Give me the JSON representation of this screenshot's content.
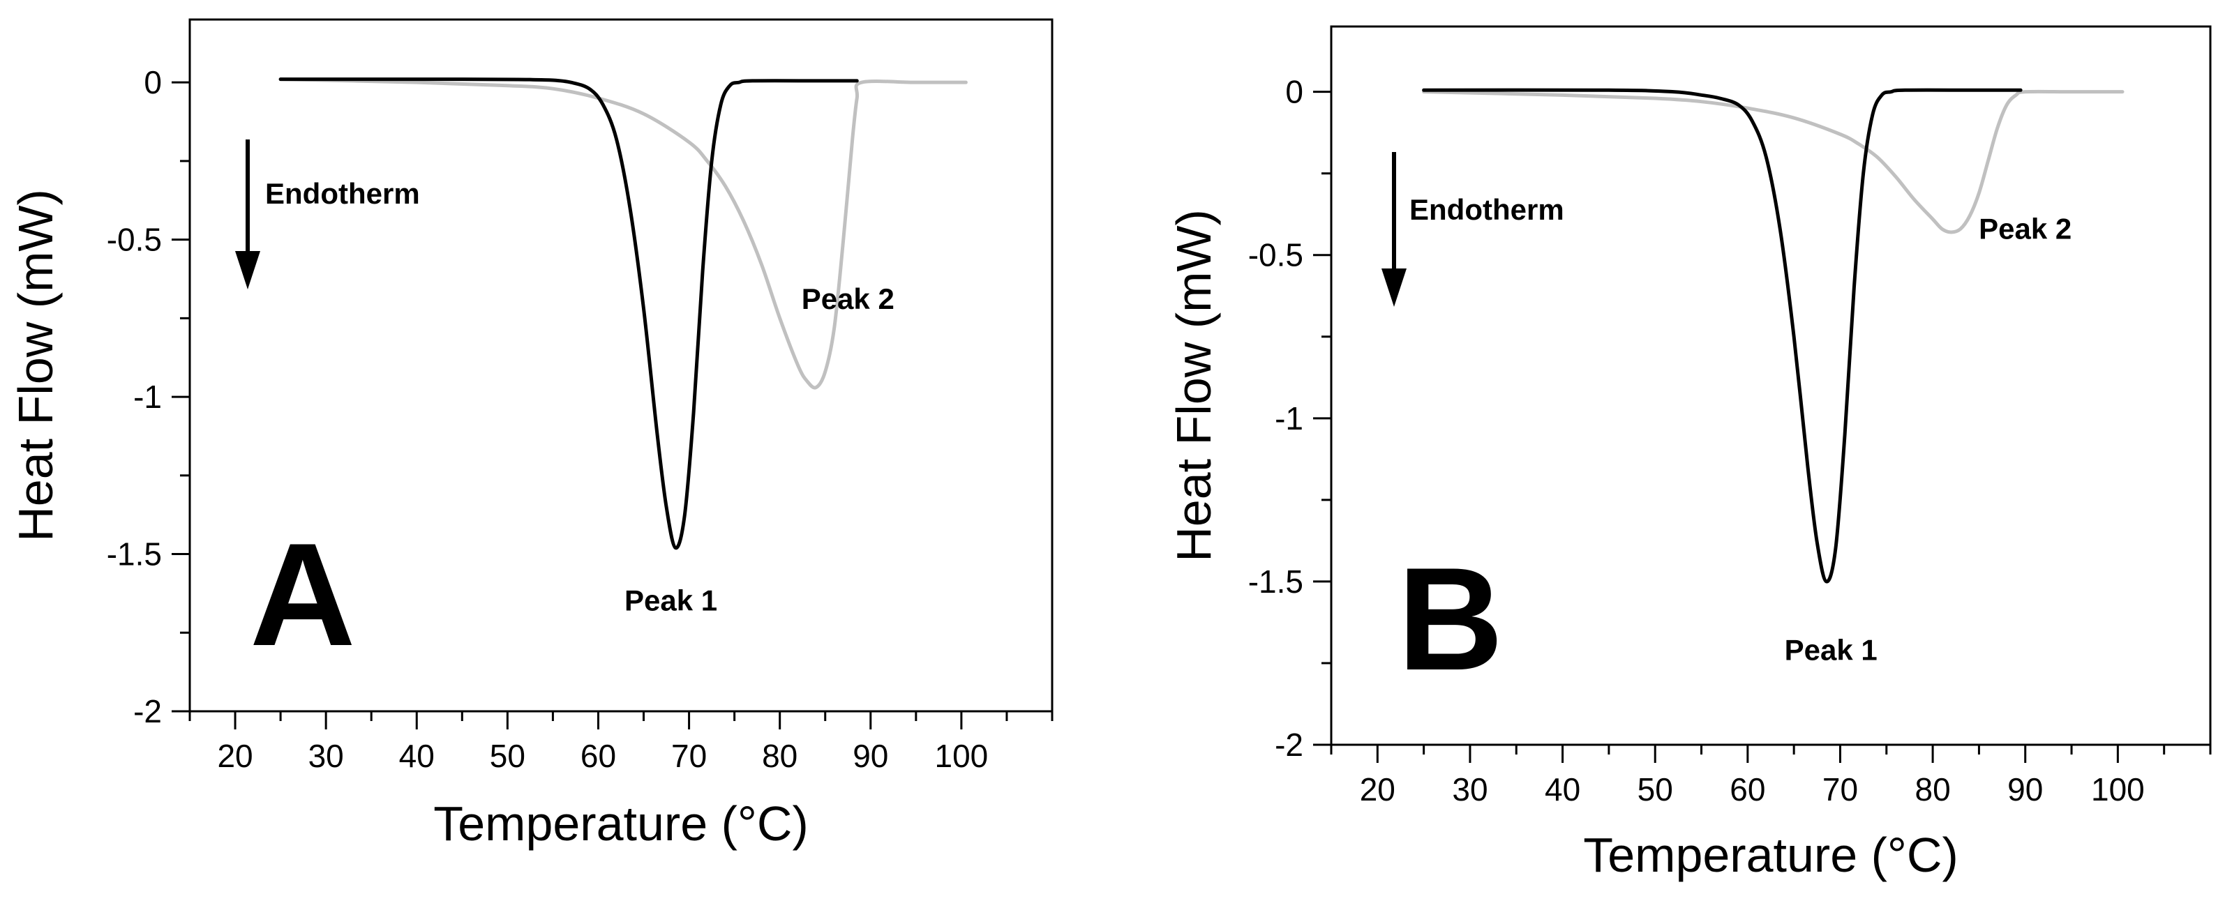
{
  "chart_data": [
    {
      "type": "line",
      "panel_label": "A",
      "xlabel": "Temperature (°C)",
      "ylabel": "Heat Flow (mW)",
      "xlim": [
        15,
        110
      ],
      "ylim": [
        -2,
        0.2
      ],
      "xticks": [
        20,
        30,
        40,
        50,
        60,
        70,
        80,
        90,
        100
      ],
      "xtick_labels": [
        "20",
        "30",
        "40",
        "50",
        "60",
        "70",
        "80",
        "90",
        "100"
      ],
      "yticks": [
        0,
        -0.5,
        -1,
        -1.5,
        -2
      ],
      "ytick_labels": [
        "0",
        "-0.5",
        "-1",
        "-1.5",
        "-2"
      ],
      "series": [
        {
          "name": "Peak 1 curve",
          "color": "#000000",
          "x": [
            25,
            45,
            52,
            55,
            57,
            59,
            60.5,
            62,
            63.5,
            65,
            66.5,
            67.5,
            68.5,
            69.5,
            70.5,
            71.5,
            72.5,
            73.5,
            74.5,
            75.5,
            77,
            85,
            88.5
          ],
          "y": [
            0.01,
            0.01,
            0.009,
            0.007,
            0.0,
            -0.02,
            -0.07,
            -0.18,
            -0.4,
            -0.72,
            -1.12,
            -1.35,
            -1.48,
            -1.38,
            -1.05,
            -0.6,
            -0.25,
            -0.07,
            -0.01,
            0.0,
            0.005,
            0.005,
            0.005
          ]
        },
        {
          "name": "Peak 2 curve",
          "color": "#c0c0c0",
          "x": [
            25,
            40,
            50,
            55,
            60,
            65,
            70,
            72,
            74,
            76,
            78,
            80,
            82,
            83,
            84,
            85,
            86,
            87,
            88,
            88.5,
            89,
            95,
            100.5
          ],
          "y": [
            0.01,
            0.0,
            -0.01,
            -0.02,
            -0.05,
            -0.1,
            -0.19,
            -0.25,
            -0.33,
            -0.44,
            -0.58,
            -0.75,
            -0.9,
            -0.95,
            -0.97,
            -0.92,
            -0.78,
            -0.5,
            -0.18,
            -0.05,
            0.0,
            0.0,
            0.0
          ]
        }
      ],
      "annotations": {
        "arrow_label": "Endotherm",
        "peak1": "Peak 1",
        "peak2": "Peak 2"
      }
    },
    {
      "type": "line",
      "panel_label": "B",
      "xlabel": "Temperature (°C)",
      "ylabel": "Heat Flow (mW)",
      "xlim": [
        15,
        110
      ],
      "ylim": [
        -2,
        0.2
      ],
      "xticks": [
        20,
        30,
        40,
        50,
        60,
        70,
        80,
        90,
        100
      ],
      "xtick_labels": [
        "20",
        "30",
        "40",
        "50",
        "60",
        "70",
        "80",
        "90",
        "100"
      ],
      "yticks": [
        0,
        -0.5,
        -1,
        -1.5,
        -2
      ],
      "ytick_labels": [
        "0",
        "-0.5",
        "-1",
        "-1.5",
        "-2"
      ],
      "series": [
        {
          "name": "Peak 1 curve",
          "color": "#000000",
          "x": [
            25,
            45,
            52,
            55,
            57,
            59,
            60.5,
            62,
            63.5,
            65,
            66.5,
            67.5,
            68.5,
            69.5,
            70.5,
            71.5,
            72.5,
            73.5,
            74.5,
            75.5,
            77,
            85,
            89.5
          ],
          "y": [
            0.005,
            0.005,
            0.0,
            -0.01,
            -0.02,
            -0.04,
            -0.09,
            -0.2,
            -0.42,
            -0.75,
            -1.15,
            -1.38,
            -1.5,
            -1.4,
            -1.05,
            -0.6,
            -0.25,
            -0.07,
            -0.01,
            0.0,
            0.005,
            0.005,
            0.005
          ]
        },
        {
          "name": "Peak 2 curve",
          "color": "#c0c0c0",
          "x": [
            25,
            40,
            50,
            55,
            60,
            65,
            70,
            72,
            74,
            76,
            78,
            80,
            81,
            82,
            83,
            84,
            85,
            86,
            87,
            88,
            89,
            90,
            95,
            100.5
          ],
          "y": [
            0.0,
            -0.01,
            -0.02,
            -0.03,
            -0.05,
            -0.08,
            -0.13,
            -0.16,
            -0.2,
            -0.26,
            -0.33,
            -0.39,
            -0.42,
            -0.43,
            -0.42,
            -0.38,
            -0.31,
            -0.21,
            -0.11,
            -0.04,
            -0.01,
            0.0,
            0.0,
            0.0
          ]
        }
      ],
      "annotations": {
        "arrow_label": "Endotherm",
        "peak1": "Peak 1",
        "peak2": "Peak 2"
      }
    }
  ]
}
